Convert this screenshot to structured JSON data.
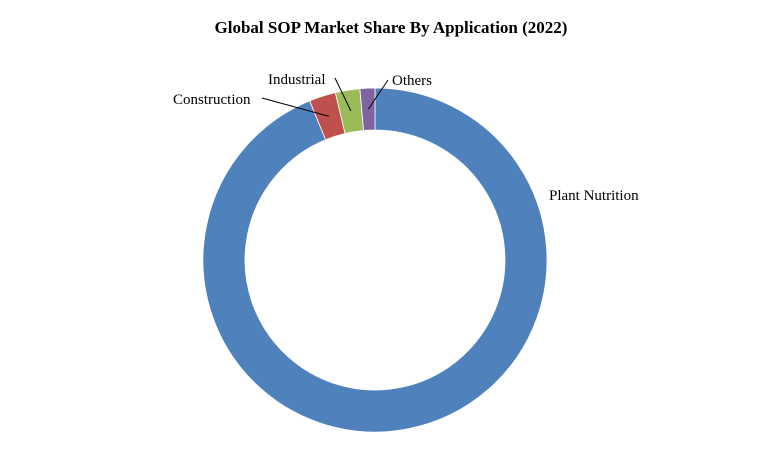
{
  "chart_data": {
    "type": "pie",
    "style": "donut",
    "title": "Global SOP Market Share By Application (2022)",
    "legend": "none",
    "slices": [
      {
        "label": "Plant Nutrition",
        "value": 93.8,
        "color": "#4F81BD"
      },
      {
        "label": "Construction",
        "value": 2.5,
        "color": "#C0504D"
      },
      {
        "label": "Industrial",
        "value": 2.3,
        "color": "#9BBB59"
      },
      {
        "label": "Others",
        "value": 1.4,
        "color": "#8064A2"
      }
    ]
  }
}
